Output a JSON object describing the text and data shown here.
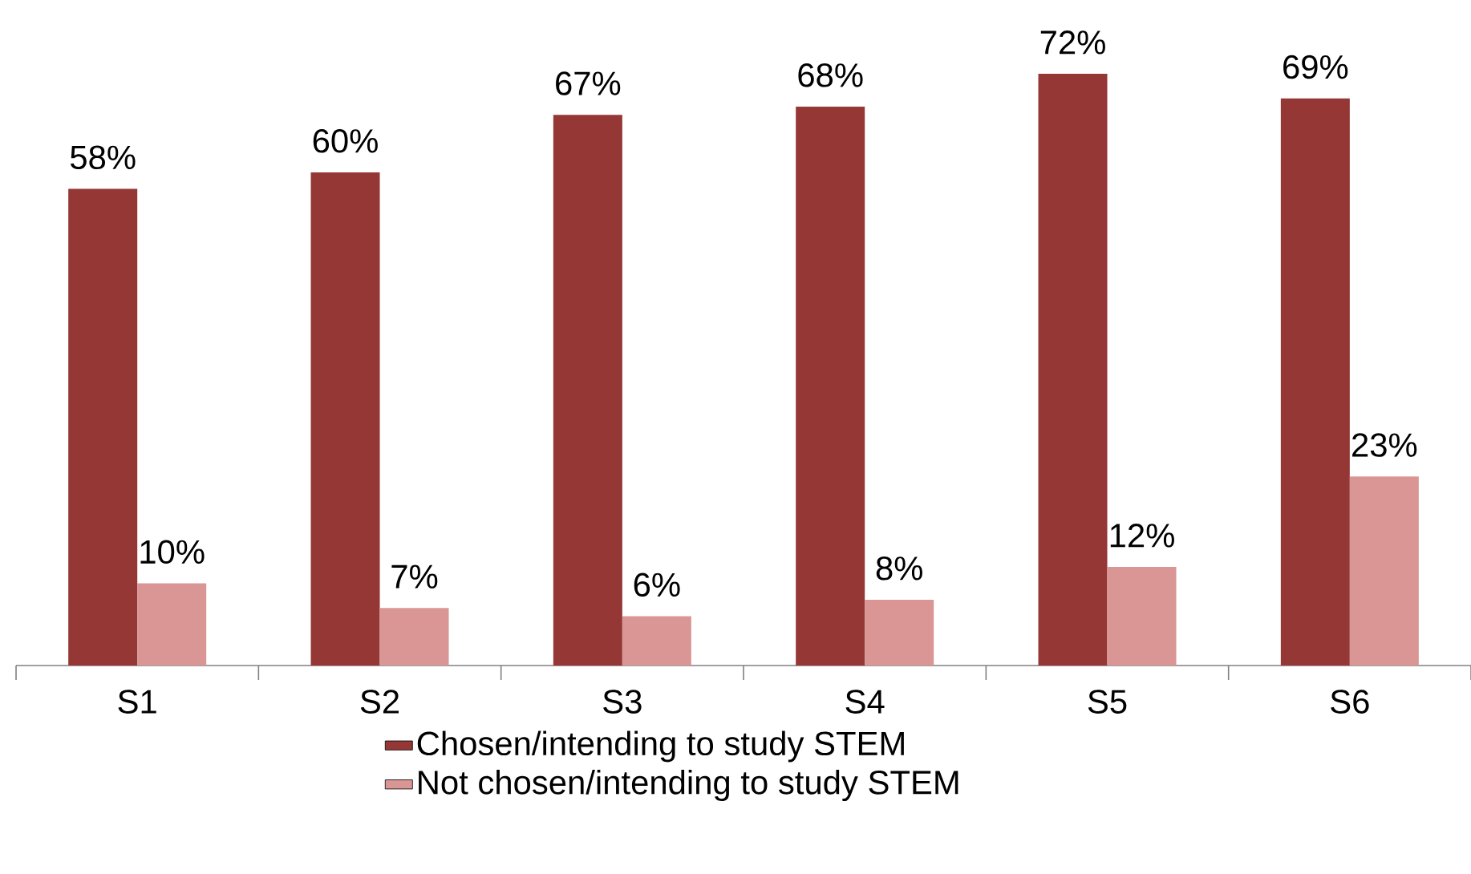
{
  "chart_data": {
    "type": "bar",
    "categories": [
      "S1",
      "S2",
      "S3",
      "S4",
      "S5",
      "S6"
    ],
    "series": [
      {
        "name": "Chosen/intending to study STEM",
        "color": "#953735",
        "values": [
          58,
          60,
          67,
          68,
          72,
          69
        ],
        "value_labels": [
          "58%",
          "60%",
          "67%",
          "68%",
          "72%",
          "69%"
        ]
      },
      {
        "name": "Not chosen/intending to study STEM",
        "color": "#d99694",
        "values": [
          10,
          7,
          6,
          8,
          12,
          23
        ],
        "value_labels": [
          "10%",
          "7%",
          "6%",
          "8%",
          "12%",
          "23%"
        ]
      }
    ],
    "legend": "bottom"
  }
}
